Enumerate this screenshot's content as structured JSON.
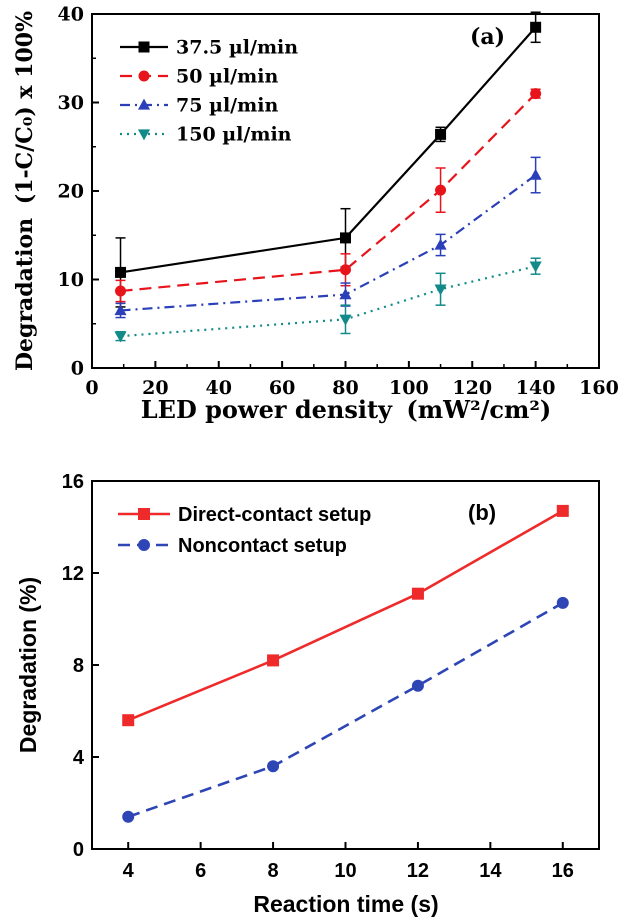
{
  "chart_data": [
    {
      "panel": "(a)",
      "type": "line",
      "xlabel_main": "LED power density",
      "xlabel_unit": "(mW²/cm²)",
      "ylabel_main": "Degradation",
      "ylabel_formula": "(1-C/C₀) x 100%",
      "xlim": [
        0,
        160
      ],
      "ylim": [
        0,
        40
      ],
      "x_ticks": [
        0,
        20,
        40,
        60,
        80,
        100,
        120,
        140,
        160
      ],
      "y_ticks": [
        0,
        10,
        20,
        30,
        40
      ],
      "legend_position": "top-left",
      "x": [
        9,
        80,
        110,
        140
      ],
      "series": [
        {
          "name": "37.5 µl/min",
          "values": [
            10.8,
            14.7,
            26.4,
            38.5
          ],
          "errors": [
            3.9,
            3.3,
            0.8,
            1.7
          ],
          "color": "#000000",
          "marker": "square",
          "dash": "solid"
        },
        {
          "name": "50 µl/min",
          "values": [
            8.7,
            11.1,
            20.1,
            31.0
          ],
          "errors": [
            1.2,
            1.8,
            2.5,
            0.5
          ],
          "color": "#e8141c",
          "marker": "circle",
          "dash": "dashed"
        },
        {
          "name": "75 µl/min",
          "values": [
            6.5,
            8.3,
            13.9,
            21.8
          ],
          "errors": [
            0.8,
            1.3,
            1.2,
            2.0
          ],
          "color": "#2b3fb8",
          "marker": "triangle-up",
          "dash": "dash-dot"
        },
        {
          "name": "150 µl/min",
          "values": [
            3.6,
            5.5,
            8.9,
            11.5
          ],
          "errors": [
            0.5,
            1.6,
            1.8,
            0.9
          ],
          "color": "#138a8a",
          "marker": "triangle-down",
          "dash": "dotted"
        }
      ]
    },
    {
      "panel": "(b)",
      "type": "line",
      "xlabel": "Reaction time (s)",
      "ylabel": "Degradation (%)",
      "xlim": [
        3,
        17
      ],
      "ylim": [
        0,
        16
      ],
      "x_ticks": [
        4,
        6,
        8,
        10,
        12,
        14,
        16
      ],
      "y_ticks": [
        0,
        4,
        8,
        12,
        16
      ],
      "legend_position": "top-left",
      "x": [
        4,
        8,
        12,
        16
      ],
      "series": [
        {
          "name": "Direct-contact setup",
          "values": [
            5.6,
            8.2,
            11.1,
            14.7
          ],
          "color": "#ee2a2a",
          "marker": "square",
          "dash": "solid"
        },
        {
          "name": "Noncontact setup",
          "values": [
            1.4,
            3.6,
            7.1,
            10.7
          ],
          "color": "#2e45b5",
          "marker": "circle",
          "dash": "dashed"
        }
      ]
    }
  ]
}
